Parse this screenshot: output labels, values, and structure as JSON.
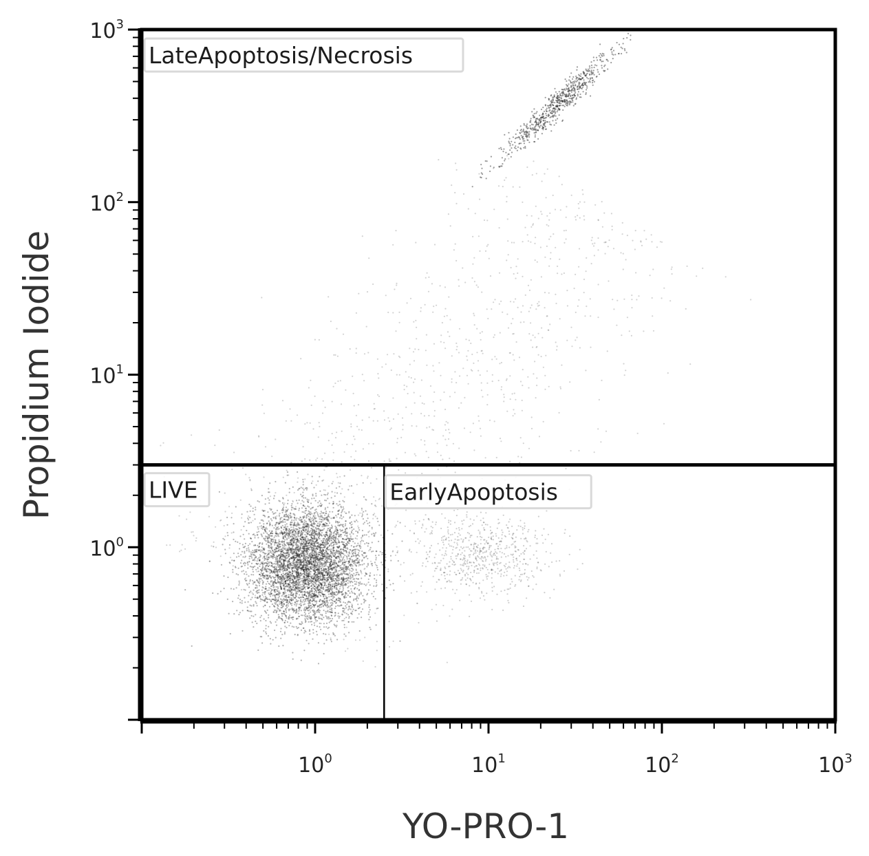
{
  "chart_data": {
    "type": "scatter",
    "xlabel": "YO-PRO-1",
    "ylabel": "Propidium Iodide",
    "xscale": "log",
    "yscale": "log",
    "xlim": [
      0.1,
      1000
    ],
    "ylim": [
      0.1,
      1000
    ],
    "x_ticks": [
      {
        "base": "10",
        "exp": "0",
        "value": 1
      },
      {
        "base": "10",
        "exp": "1",
        "value": 10
      },
      {
        "base": "10",
        "exp": "2",
        "value": 100
      },
      {
        "base": "10",
        "exp": "3",
        "value": 1000
      }
    ],
    "y_ticks": [
      {
        "base": "10",
        "exp": "0",
        "value": 1
      },
      {
        "base": "10",
        "exp": "1",
        "value": 10
      },
      {
        "base": "10",
        "exp": "2",
        "value": 100
      },
      {
        "base": "10",
        "exp": "3",
        "value": 1000
      }
    ],
    "gates": [
      {
        "name": "LateApoptosis/Necrosis",
        "x_range": [
          0.1,
          1000
        ],
        "y_range": [
          3,
          1000
        ]
      },
      {
        "name": "LIVE",
        "x_range": [
          0.1,
          2.5
        ],
        "y_range": [
          0.1,
          3
        ]
      },
      {
        "name": "EarlyApoptosis",
        "x_range": [
          2.5,
          1000
        ],
        "y_range": [
          0.1,
          3
        ]
      }
    ],
    "populations": [
      {
        "name": "",
        "x_center": 0.9,
        "y_center": 0.8,
        "x_spread": 0.17,
        "y_spread": 0.17,
        "count": 5200,
        "opacity": 0.34
      },
      {
        "name": "",
        "x_center": 9.0,
        "y_center": 0.9,
        "x_spread": 0.2,
        "y_spread": 0.12,
        "count": 650,
        "opacity": 0.22
      },
      {
        "name": "",
        "x_center": 25,
        "y_center": 370,
        "x_spread": 0.03,
        "y_spread": 0.03,
        "count": 700,
        "opacity": 0.45
      },
      {
        "name": "",
        "x_center": 4,
        "y_center": 15,
        "x_spread": 0.45,
        "y_spread": 0.45,
        "count": 1100,
        "opacity": 0.2
      }
    ]
  }
}
